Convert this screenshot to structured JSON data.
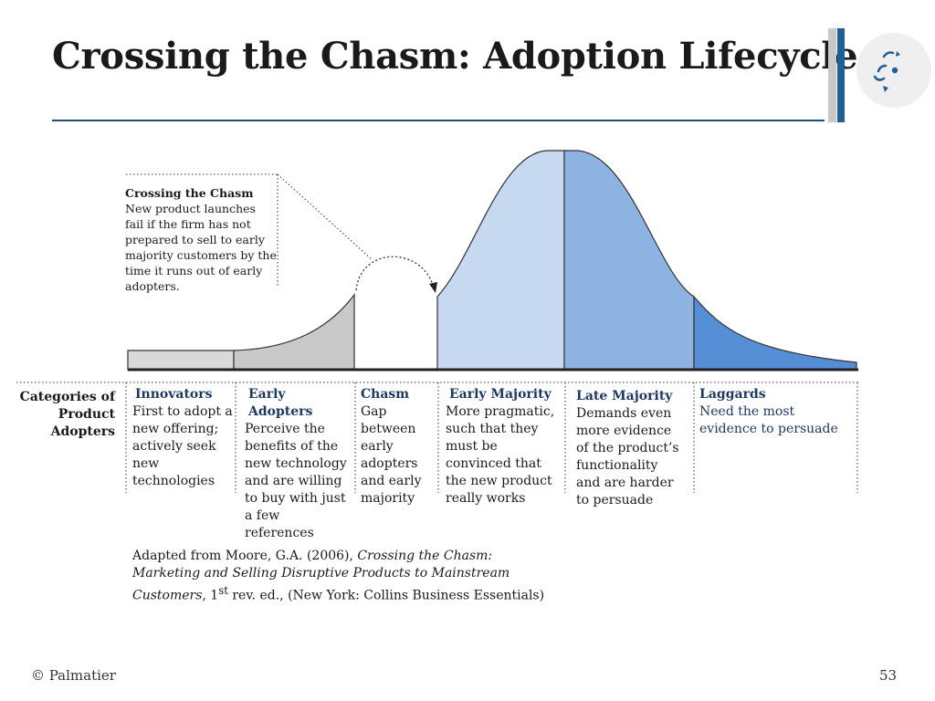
{
  "slide": {
    "title": "Crossing the Chasm: Adoption Lifecycle",
    "footer_left": "© Palmatier",
    "page_number": "53"
  },
  "colors": {
    "rule": "#1f4e79",
    "innovators": "#d9d9d9",
    "early_adopters": "#c9c9c9",
    "early_majority": "#c6d9f1",
    "late_majority": "#8db3e2",
    "laggards": "#558ed5",
    "header_text": "#1f3864"
  },
  "callout": {
    "heading": "Crossing the Chasm",
    "body": "New product launches fail if the firm has not prepared to sell to early majority customers by the time it runs out of early adopters."
  },
  "row_label": "Categories of Product Adopters",
  "categories": [
    {
      "heading": "Innovators",
      "text": "First to adopt a new offering; actively seek new technologies"
    },
    {
      "heading": "Early Adopters",
      "text": "Perceive the benefits of the new technology and are willing to buy with just a few references"
    },
    {
      "heading": "Chasm",
      "text": "Gap between early adopters and early majority"
    },
    {
      "heading": "Early Majority",
      "text": "More pragmatic, such that they must be convinced that the new product really works"
    },
    {
      "heading": "Late Majority",
      "text": "Demands even more evidence of the product’s functionality and are harder to persuade"
    },
    {
      "heading": "Laggards",
      "text": "Need the most evidence to persuade"
    }
  ],
  "citation": {
    "prefix": "Adapted from Moore, G.A. (2006), ",
    "title": "Crossing the Chasm: Marketing and Selling Disruptive Products to Mainstream Customers",
    "edition_num": ", 1",
    "edition_sup": "st",
    "suffix": " rev. ed., (New York: Collins Business Essentials)"
  }
}
